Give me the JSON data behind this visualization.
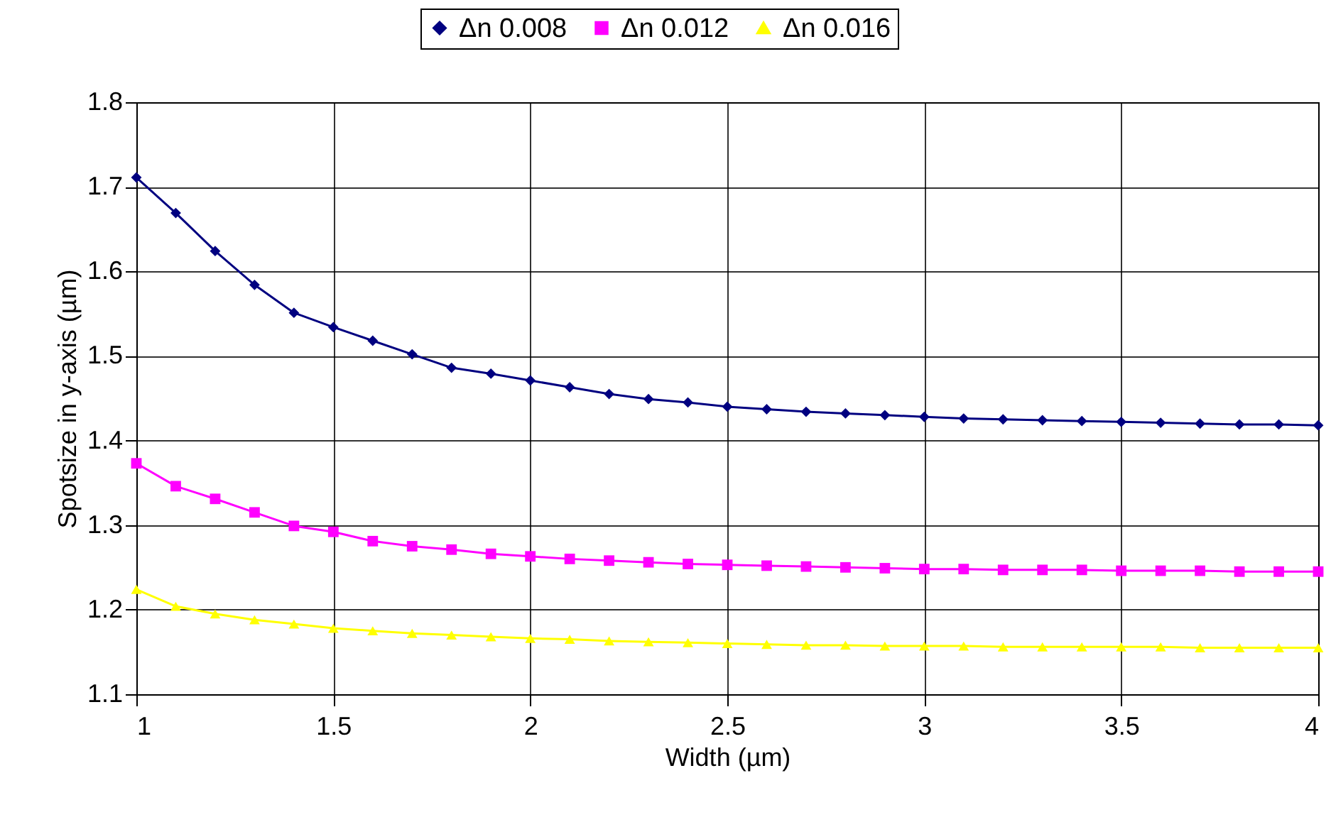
{
  "chart_data": {
    "type": "line",
    "xlabel": "Width (µm)",
    "ylabel": "Spotsize in y-axis (µm)",
    "x": [
      1,
      1.1,
      1.2,
      1.3,
      1.4,
      1.5,
      1.6,
      1.7,
      1.8,
      1.9,
      2,
      2.1,
      2.2,
      2.3,
      2.4,
      2.5,
      2.6,
      2.7,
      2.8,
      2.9,
      3,
      3.1,
      3.2,
      3.3,
      3.4,
      3.5,
      3.6,
      3.7,
      3.8,
      3.9,
      4
    ],
    "series": [
      {
        "name": "Δn 0.008",
        "color": "#000080",
        "marker": "diamond",
        "values": [
          1.711,
          1.669,
          1.624,
          1.584,
          1.551,
          1.534,
          1.518,
          1.502,
          1.486,
          1.479,
          1.471,
          1.463,
          1.455,
          1.449,
          1.445,
          1.44,
          1.437,
          1.434,
          1.432,
          1.43,
          1.428,
          1.426,
          1.425,
          1.424,
          1.423,
          1.422,
          1.421,
          1.42,
          1.419,
          1.419,
          1.418
        ]
      },
      {
        "name": "Δn 0.012",
        "color": "#ff00ff",
        "marker": "square",
        "values": [
          1.373,
          1.346,
          1.331,
          1.315,
          1.299,
          1.292,
          1.281,
          1.275,
          1.271,
          1.266,
          1.263,
          1.26,
          1.258,
          1.256,
          1.254,
          1.253,
          1.252,
          1.251,
          1.25,
          1.249,
          1.248,
          1.248,
          1.247,
          1.247,
          1.247,
          1.246,
          1.246,
          1.246,
          1.245,
          1.245,
          1.245
        ]
      },
      {
        "name": "Δn 0.016",
        "color": "#ffff00",
        "marker": "triangle",
        "values": [
          1.224,
          1.204,
          1.195,
          1.188,
          1.183,
          1.178,
          1.175,
          1.172,
          1.17,
          1.168,
          1.166,
          1.165,
          1.163,
          1.162,
          1.161,
          1.16,
          1.159,
          1.158,
          1.158,
          1.157,
          1.157,
          1.157,
          1.156,
          1.156,
          1.156,
          1.156,
          1.156,
          1.155,
          1.155,
          1.155,
          1.155
        ]
      }
    ],
    "xlim": [
      1,
      4
    ],
    "xticks": [
      1,
      1.5,
      2,
      2.5,
      3,
      3.5,
      4
    ],
    "ylim": [
      1.1,
      1.8
    ],
    "yticks": [
      1.1,
      1.2,
      1.3,
      1.4,
      1.5,
      1.6,
      1.7,
      1.8
    ],
    "grid": true,
    "legend": "top",
    "line_style": "solid"
  }
}
